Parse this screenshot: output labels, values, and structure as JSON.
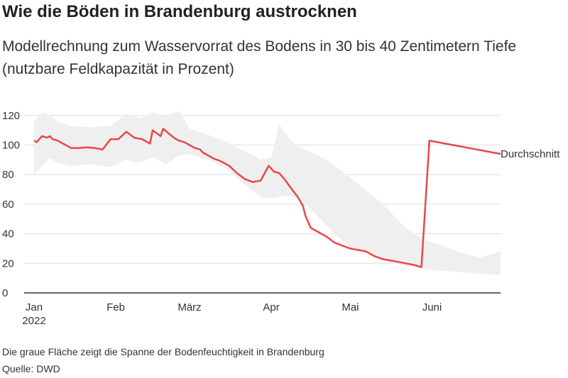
{
  "title": "Wie die Böden in Brandenburg austrocknen",
  "subtitle": "Modellrechnung zum Wasservorrat des Bodens in 30 bis 40 Zentimetern Tiefe (nutzbare Feldkapazität in Prozent)",
  "note": "Die graue Fläche zeigt die Spanne der Bodenfeuchtigkeit in Brandenburg",
  "source": "Quelle: DWD",
  "colors": {
    "line": "#e8474a",
    "band": "#efefef",
    "grid": "#dddddd",
    "axis": "#333333"
  },
  "chart_data": {
    "type": "line",
    "ylim": [
      0,
      130
    ],
    "yticks": [
      0,
      20,
      40,
      60,
      80,
      100,
      120
    ],
    "xlim": [
      "2022-01-01",
      "2022-06-27"
    ],
    "xticks": [
      {
        "date": "2022-01-01",
        "label": "Jan",
        "sublabel": "2022"
      },
      {
        "date": "2022-02-01",
        "label": "Feb"
      },
      {
        "date": "2022-03-01",
        "label": "März"
      },
      {
        "date": "2022-04-01",
        "label": "Apr"
      },
      {
        "date": "2022-05-01",
        "label": "Mai"
      },
      {
        "date": "2022-06-01",
        "label": "Juni"
      }
    ],
    "series": [
      {
        "name": "Durchschnitt",
        "x": [
          "2022-01-01",
          "2022-01-02",
          "2022-01-04",
          "2022-01-06",
          "2022-01-07",
          "2022-01-08",
          "2022-01-10",
          "2022-01-12",
          "2022-01-13",
          "2022-01-15",
          "2022-01-18",
          "2022-01-21",
          "2022-01-24",
          "2022-01-27",
          "2022-01-30",
          "2022-02-02",
          "2022-02-05",
          "2022-02-08",
          "2022-02-11",
          "2022-02-13",
          "2022-02-14",
          "2022-02-15",
          "2022-02-18",
          "2022-02-19",
          "2022-02-21",
          "2022-02-23",
          "2022-02-25",
          "2022-02-27",
          "2022-02-28",
          "2022-03-01",
          "2022-03-02",
          "2022-03-03",
          "2022-03-05",
          "2022-03-06",
          "2022-03-07",
          "2022-03-10",
          "2022-03-13",
          "2022-03-16",
          "2022-03-19",
          "2022-03-22",
          "2022-03-25",
          "2022-03-28",
          "2022-03-31",
          "2022-04-02",
          "2022-04-04",
          "2022-04-05",
          "2022-04-06",
          "2022-04-08",
          "2022-04-11",
          "2022-04-13",
          "2022-04-14",
          "2022-04-16",
          "2022-04-19",
          "2022-04-22",
          "2022-04-25",
          "2022-04-28",
          "2022-05-01",
          "2022-05-04",
          "2022-05-07",
          "2022-05-10",
          "2022-05-13",
          "2022-05-16",
          "2022-05-19",
          "2022-05-22",
          "2022-05-25",
          "2022-05-28",
          "2022-05-31",
          "2022-06-03",
          "2022-06-06",
          "2022-06-09",
          "2022-06-12",
          "2022-06-15",
          "2022-06-18",
          "2022-06-21",
          "2022-06-24",
          "2022-06-27"
        ],
        "values": [
          103,
          102,
          106,
          105,
          106,
          104,
          103,
          101,
          100,
          98,
          98,
          98.5,
          98,
          97,
          104,
          104,
          109,
          105,
          104,
          102,
          101,
          110,
          106,
          111,
          108,
          105,
          103,
          102,
          101,
          100,
          99,
          98,
          97,
          95,
          94,
          91,
          89,
          86,
          81,
          77,
          75,
          76,
          86,
          82,
          81,
          79,
          77,
          72,
          65,
          59,
          52,
          44,
          41,
          38,
          34,
          32,
          30,
          29,
          28,
          25,
          23,
          22,
          21,
          20,
          19,
          17.5,
          103,
          102,
          101,
          100,
          99,
          98,
          97,
          96,
          95,
          94
        ],
        "values_note": ""
      }
    ],
    "band": {
      "x": [
        "2022-01-01",
        "2022-01-04",
        "2022-01-07",
        "2022-01-10",
        "2022-01-15",
        "2022-01-22",
        "2022-01-30",
        "2022-02-05",
        "2022-02-10",
        "2022-02-15",
        "2022-02-20",
        "2022-02-25",
        "2022-03-01",
        "2022-03-08",
        "2022-03-15",
        "2022-03-22",
        "2022-03-28",
        "2022-04-01",
        "2022-04-04",
        "2022-04-08",
        "2022-04-12",
        "2022-04-18",
        "2022-04-25",
        "2022-05-01",
        "2022-05-08",
        "2022-05-15",
        "2022-05-22",
        "2022-05-29",
        "2022-06-05",
        "2022-06-12",
        "2022-06-19",
        "2022-06-27"
      ],
      "upper": [
        116,
        122,
        120,
        116,
        113,
        112,
        113,
        121,
        118,
        122,
        120,
        123,
        111,
        107,
        102,
        96,
        90,
        92,
        114,
        104,
        98,
        94,
        86,
        78,
        68,
        57,
        44,
        36,
        32,
        27,
        24,
        28
      ],
      "lower": [
        80,
        86,
        91,
        88,
        86,
        87,
        85,
        90,
        88,
        92,
        87,
        93,
        94,
        90,
        84,
        73,
        65,
        64,
        65,
        66,
        63,
        53,
        40,
        31,
        26,
        21,
        18,
        16,
        15,
        14,
        13,
        12
      ]
    }
  }
}
